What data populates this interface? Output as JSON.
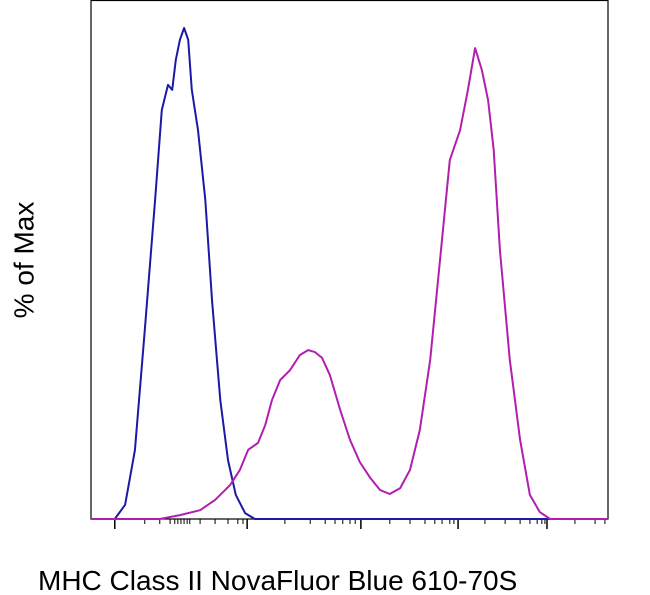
{
  "chart_data": {
    "type": "line",
    "y_label": "% of Max",
    "x_label": "MHC Class II NovaFluor Blue 610-70S",
    "xlim": [
      0,
      100
    ],
    "ylim": [
      0,
      105.7
    ],
    "xticks": [
      4.6,
      30.2,
      52.2,
      71.0,
      88.2
    ],
    "xminorticks": [
      10.4,
      13.3,
      15.3,
      16.2,
      16.8,
      17.4,
      18.0,
      18.6,
      19.1,
      21.1,
      24.0,
      26.5,
      28.4,
      29.4,
      37.5,
      42.4,
      45.3,
      47.2,
      48.7,
      50.1,
      51.1,
      57.8,
      61.7,
      64.6,
      66.5,
      67.9,
      69.4,
      70.2,
      76.2,
      80.1,
      83.0,
      84.9,
      86.3,
      87.2,
      87.8,
      93.6,
      97.5,
      99.4
    ],
    "series": [
      {
        "color": "#1a1aa6",
        "x": [
          0,
          4.6,
          6.6,
          8.5,
          10.4,
          12.4,
          13.7,
          14.9,
          15.7,
          16.4,
          17.2,
          18.0,
          18.8,
          19.5,
          20.7,
          22.1,
          23.4,
          25.0,
          26.5,
          28.0,
          29.8,
          31.7,
          100
        ],
        "values": [
          0,
          0,
          2.9,
          14.0,
          38.5,
          65.0,
          83.3,
          88.4,
          87.4,
          93.5,
          97.6,
          100,
          97.6,
          87.4,
          79.2,
          65.0,
          44.6,
          24.2,
          12.0,
          4.9,
          1.2,
          0,
          0
        ]
      },
      {
        "color": "#b01fb0",
        "x": [
          0,
          13.3,
          17.2,
          21.1,
          24.0,
          26.9,
          28.8,
          30.4,
          32.3,
          33.7,
          35.0,
          36.6,
          38.5,
          40.4,
          42.0,
          43.3,
          44.7,
          46.2,
          48.2,
          50.1,
          52.0,
          54.0,
          55.9,
          57.8,
          59.8,
          61.7,
          63.6,
          65.6,
          67.5,
          69.4,
          71.4,
          72.9,
          74.3,
          75.6,
          76.8,
          77.9,
          79.1,
          81.0,
          83.0,
          84.9,
          86.8,
          88.8,
          100
        ],
        "values": [
          0,
          0,
          0.8,
          1.8,
          3.9,
          6.9,
          10.0,
          14.1,
          15.5,
          19.1,
          24.2,
          28.3,
          30.3,
          33.4,
          34.4,
          34.0,
          32.8,
          29.3,
          22.2,
          16.1,
          11.6,
          8.4,
          5.9,
          5.1,
          6.3,
          10.0,
          18.1,
          32.4,
          52.7,
          73.1,
          79.2,
          87.4,
          95.9,
          91.4,
          85.3,
          75.2,
          54.8,
          32.4,
          16.1,
          4.9,
          1.4,
          0,
          0
        ]
      }
    ]
  }
}
